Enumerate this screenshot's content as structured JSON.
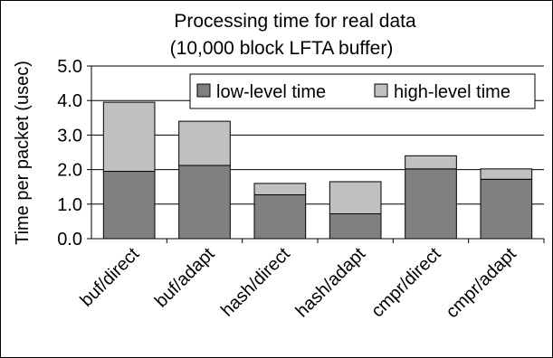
{
  "chart_data": {
    "type": "bar",
    "stacked": true,
    "title": "Processing time for real data",
    "subtitle": "(10,000 block LFTA buffer)",
    "xlabel": "",
    "ylabel": "Time per packet (usec)",
    "ylim": [
      0,
      5
    ],
    "yticks": [
      "0.0",
      "1.0",
      "2.0",
      "3.0",
      "4.0",
      "5.0"
    ],
    "grid": "horizontal",
    "legend_position": "top-right",
    "categories": [
      "buf/direct",
      "buf/adapt",
      "hash/direct",
      "hash/adapt",
      "cmpr/direct",
      "cmpr/adapt"
    ],
    "series": [
      {
        "name": "low-level time",
        "color": "#808080",
        "values": [
          1.95,
          2.12,
          1.27,
          0.72,
          2.02,
          1.72
        ]
      },
      {
        "name": "high-level time",
        "color": "#c0c0c0",
        "values": [
          2.0,
          1.28,
          0.33,
          0.93,
          0.38,
          0.3
        ]
      }
    ]
  }
}
